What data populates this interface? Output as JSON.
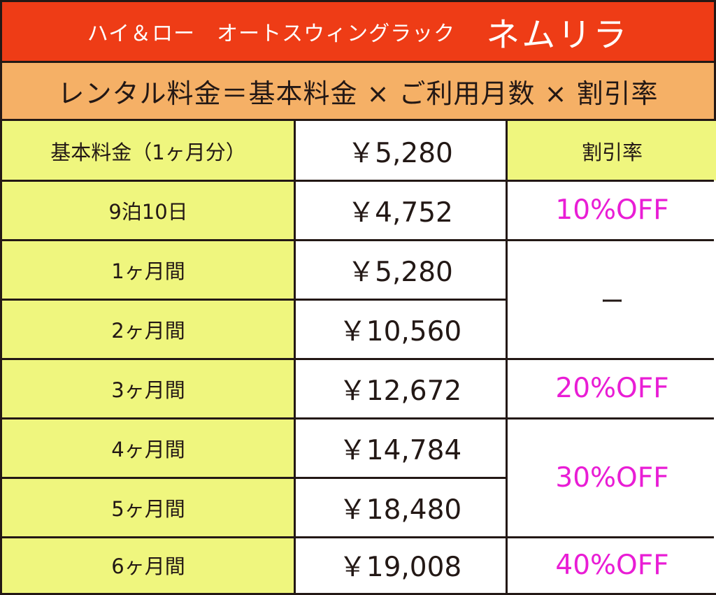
{
  "header": {
    "subtitle": "ハイ＆ロー　オートスウィングラック",
    "product_name": "ネムリラ"
  },
  "formula": "レンタル料金＝基本料金 × ご利用月数 × 割引率",
  "table": {
    "rate_header": "割引率",
    "rows": [
      {
        "label": "基本料金（1ヶ月分）",
        "price": "￥5,280"
      },
      {
        "label": "9泊10日",
        "price": "￥4,752"
      },
      {
        "label": "1ヶ月間",
        "price": "￥5,280"
      },
      {
        "label": "2ヶ月間",
        "price": "￥10,560"
      },
      {
        "label": "3ヶ月間",
        "price": "￥12,672"
      },
      {
        "label": "4ヶ月間",
        "price": "￥14,784"
      },
      {
        "label": "5ヶ月間",
        "price": "￥18,480"
      },
      {
        "label": "6ヶ月間",
        "price": "￥19,008"
      }
    ],
    "rates": [
      {
        "text": "10%OFF"
      },
      {
        "text": "ー"
      },
      {
        "text": "20%OFF"
      },
      {
        "text": "30%OFF"
      },
      {
        "text": "40%OFF"
      }
    ]
  },
  "colors": {
    "title_bg": "#ee3c16",
    "formula_bg": "#f5b066",
    "label_bg": "#eff67e",
    "discount_text": "#e91dd5"
  }
}
